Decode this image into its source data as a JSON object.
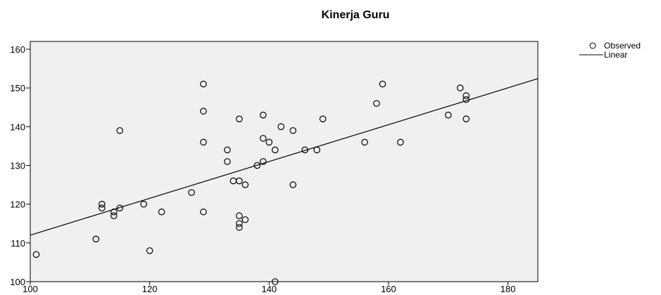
{
  "chart_data": {
    "type": "scatter",
    "title": "Kinerja Guru",
    "xlim": [
      100,
      185
    ],
    "ylim": [
      100,
      162
    ],
    "x_ticks": [
      100,
      120,
      140,
      160,
      180
    ],
    "y_ticks": [
      100,
      110,
      120,
      130,
      140,
      150,
      160
    ],
    "grid": false,
    "legend_position": "top-right",
    "series": [
      {
        "name": "Observed",
        "marker": "open-circle",
        "points": [
          [
            101,
            107
          ],
          [
            111,
            111
          ],
          [
            112,
            119
          ],
          [
            112,
            120
          ],
          [
            114,
            117
          ],
          [
            114,
            118
          ],
          [
            115,
            119
          ],
          [
            115,
            139
          ],
          [
            119,
            120
          ],
          [
            120,
            108
          ],
          [
            122,
            118
          ],
          [
            127,
            123
          ],
          [
            129,
            151
          ],
          [
            129,
            144
          ],
          [
            129,
            136
          ],
          [
            129,
            118
          ],
          [
            133,
            134
          ],
          [
            133,
            131
          ],
          [
            134,
            126
          ],
          [
            135,
            142
          ],
          [
            135,
            126
          ],
          [
            135,
            117
          ],
          [
            135,
            115
          ],
          [
            135,
            114
          ],
          [
            136,
            125
          ],
          [
            136,
            116
          ],
          [
            138,
            130
          ],
          [
            139,
            143
          ],
          [
            139,
            137
          ],
          [
            139,
            131
          ],
          [
            140,
            136
          ],
          [
            141,
            134
          ],
          [
            141,
            100
          ],
          [
            142,
            140
          ],
          [
            144,
            139
          ],
          [
            144,
            125
          ],
          [
            146,
            134
          ],
          [
            148,
            134
          ],
          [
            149,
            142
          ],
          [
            156,
            136
          ],
          [
            158,
            146
          ],
          [
            159,
            151
          ],
          [
            162,
            136
          ],
          [
            170,
            143
          ],
          [
            172,
            150
          ],
          [
            173,
            148
          ],
          [
            173,
            147
          ],
          [
            173,
            142
          ]
        ]
      },
      {
        "name": "Linear",
        "type": "line",
        "points": [
          [
            100,
            112
          ],
          [
            185,
            152.4
          ]
        ]
      }
    ]
  },
  "colors": {
    "plot_background": "#f0f0f0",
    "marker_stroke": "#000000",
    "line": "#000000"
  }
}
